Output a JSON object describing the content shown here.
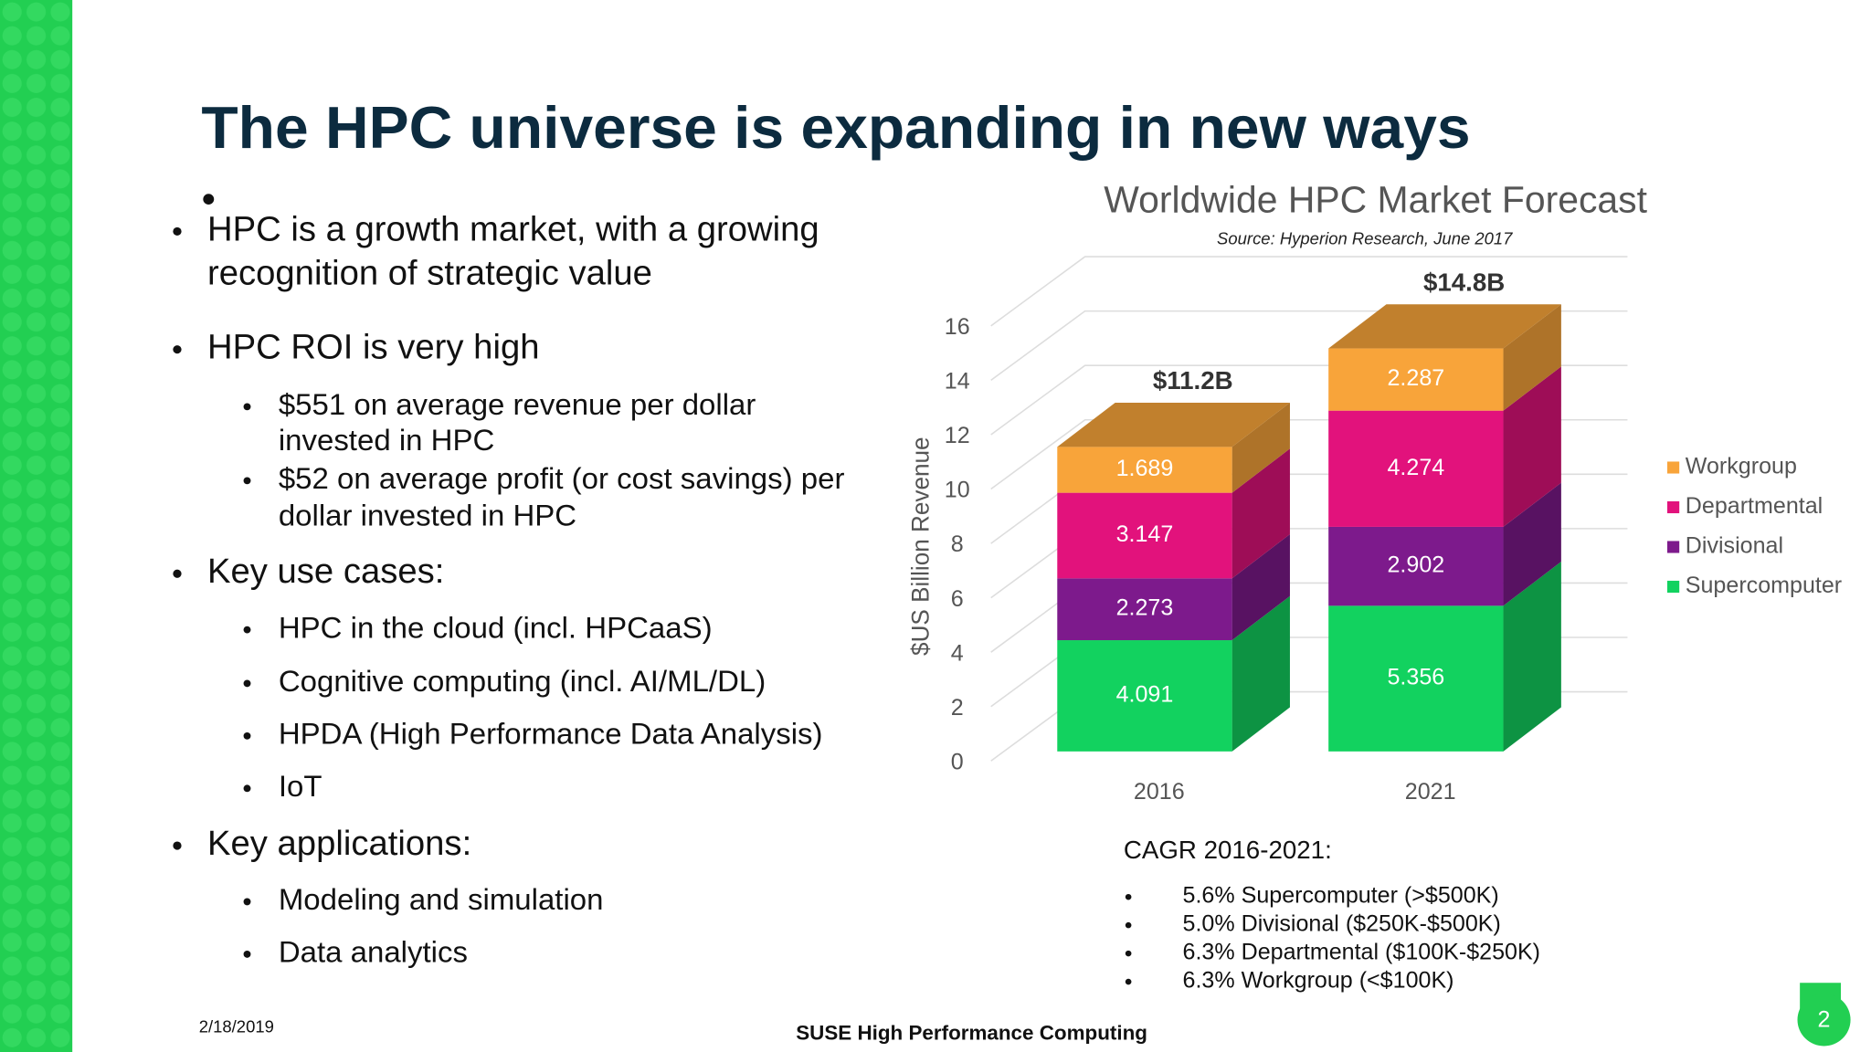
{
  "slide": {
    "title": "The HPC universe is expanding in new ways",
    "bullets": [
      {
        "lines": [
          "HPC is a growth market, with a growing",
          "recognition of strategic value"
        ]
      },
      {
        "lines": [
          "HPC ROI is very high"
        ],
        "sub": [
          {
            "lines": [
              "$551 on average revenue per dollar",
              "invested in HPC"
            ]
          },
          {
            "lines": [
              "$52 on average profit (or cost savings) per",
              "dollar invested in HPC"
            ]
          }
        ]
      },
      {
        "lines": [
          "Key use cases:"
        ],
        "sub": [
          {
            "lines": [
              "HPC in the cloud (incl. HPCaaS)"
            ]
          },
          {
            "lines": [
              "Cognitive computing (incl. AI/ML/DL)"
            ]
          },
          {
            "lines": [
              "HPDA (High Performance Data Analysis)"
            ]
          },
          {
            "lines": [
              "IoT"
            ]
          }
        ]
      },
      {
        "lines": [
          "Key applications:"
        ],
        "sub": [
          {
            "lines": [
              "Modeling and simulation"
            ]
          },
          {
            "lines": [
              "Data analytics"
            ]
          }
        ]
      }
    ],
    "cagr": {
      "heading": "CAGR 2016-2021:",
      "items": [
        "5.6% Supercomputer (>$500K)",
        "5.0% Divisional ($250K-$500K)",
        "6.3% Departmental ($100K-$250K)",
        "6.3% Workgroup (<$100K)"
      ]
    },
    "footer": {
      "date": "2/18/2019",
      "center": "SUSE High Performance Computing",
      "page": "2"
    }
  },
  "chart_data": {
    "type": "bar3d_stacked",
    "title": "Worldwide HPC Market Forecast",
    "subtitle": "Source: Hyperion Research, June 2017",
    "y_label": "$US Billion Revenue",
    "categories": [
      "2016",
      "2021"
    ],
    "series": [
      {
        "name": "Supercomputer",
        "color": "#12d25f",
        "values": [
          4.091,
          5.356
        ]
      },
      {
        "name": "Divisional",
        "color": "#7d1a8c",
        "values": [
          2.273,
          2.902
        ]
      },
      {
        "name": "Departmental",
        "color": "#e2127c",
        "values": [
          3.147,
          4.274
        ]
      },
      {
        "name": "Workgroup",
        "color": "#f8a43a",
        "values": [
          1.689,
          2.287
        ]
      }
    ],
    "annotations": [
      "$11.2B",
      "$14.8B"
    ],
    "ylim": [
      0,
      16
    ],
    "yticks": [
      0,
      2,
      4,
      6,
      8,
      10,
      12,
      14,
      16
    ],
    "grid": true,
    "legend": "right"
  }
}
